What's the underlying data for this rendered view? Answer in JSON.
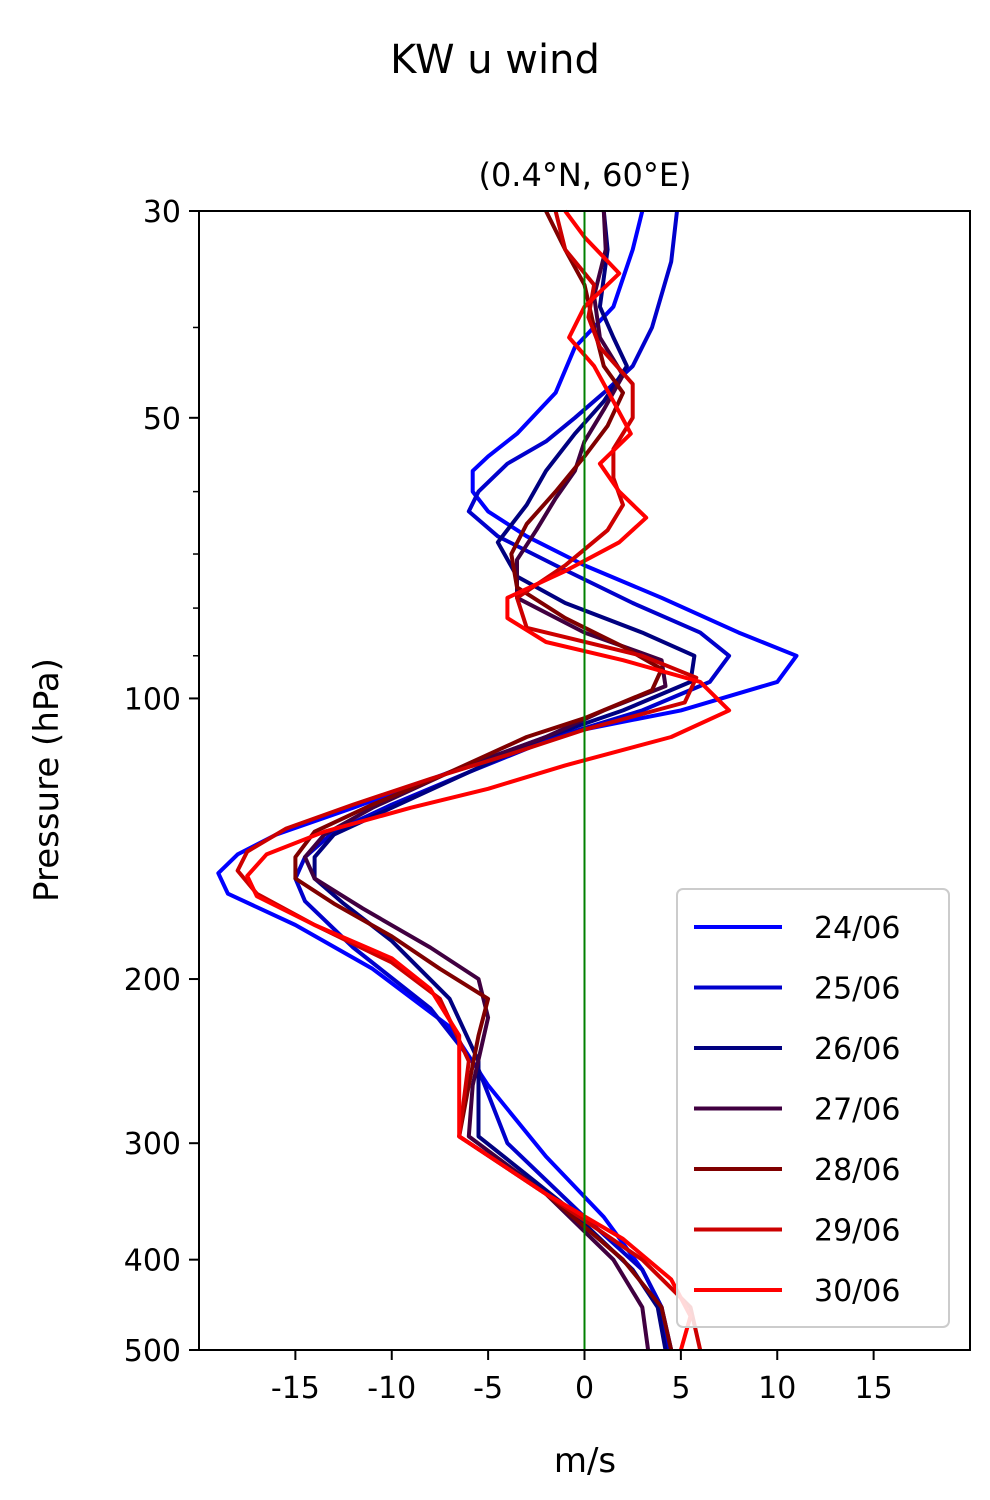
{
  "figure_title": "KW u wind",
  "chart_data": {
    "type": "line",
    "title": "(0.4°N, 60°E)",
    "xlabel": "m/s",
    "ylabel": "Pressure (hPa)",
    "xlim": [
      -20,
      20
    ],
    "ylim": [
      500,
      30
    ],
    "yscale": "log",
    "xticks": [
      -15,
      -10,
      -5,
      0,
      5,
      10,
      15
    ],
    "xtick_labels": [
      "-15",
      "-10",
      "-5",
      "0",
      "5",
      "10",
      "15"
    ],
    "yticks": [
      30,
      50,
      100,
      200,
      300,
      400,
      500
    ],
    "ytick_labels": [
      "30",
      "50",
      "100",
      "200",
      "300",
      "400",
      "500"
    ],
    "yminor_ticks": [
      40,
      60,
      70,
      80,
      90
    ],
    "zero_line": {
      "x": 0,
      "color": "#008000"
    },
    "grid": false,
    "legend_position": "lower right",
    "series": [
      {
        "name": "24/06",
        "color": "#0000ff",
        "points": [
          [
            3.0,
            30
          ],
          [
            2.5,
            33
          ],
          [
            1.5,
            38
          ],
          [
            -0.5,
            42
          ],
          [
            -1.5,
            47
          ],
          [
            -3.5,
            52
          ],
          [
            -5,
            55
          ],
          [
            -5.8,
            57
          ],
          [
            -5.8,
            60
          ],
          [
            -5,
            63
          ],
          [
            -3,
            67
          ],
          [
            0,
            72
          ],
          [
            4,
            78
          ],
          [
            8,
            85
          ],
          [
            11,
            90
          ],
          [
            10,
            96
          ],
          [
            5,
            103
          ],
          [
            -2,
            110
          ],
          [
            -7,
            120
          ],
          [
            -12,
            131
          ],
          [
            -16,
            140
          ],
          [
            -18,
            147
          ],
          [
            -19,
            154
          ],
          [
            -18.5,
            162
          ],
          [
            -15,
            175
          ],
          [
            -11,
            195
          ],
          [
            -7,
            225
          ],
          [
            -5,
            260
          ],
          [
            -2,
            310
          ],
          [
            1,
            360
          ],
          [
            3,
            410
          ],
          [
            4,
            450
          ],
          [
            4.5,
            500
          ]
        ]
      },
      {
        "name": "25/06",
        "color": "#0000cc",
        "points": [
          [
            4.8,
            30
          ],
          [
            4.5,
            34
          ],
          [
            3.5,
            40
          ],
          [
            2.5,
            44
          ],
          [
            1,
            47
          ],
          [
            -0.5,
            50
          ],
          [
            -2,
            53
          ],
          [
            -4,
            56
          ],
          [
            -5.5,
            60
          ],
          [
            -6,
            63
          ],
          [
            -4.5,
            67
          ],
          [
            -1.5,
            72
          ],
          [
            2.5,
            79
          ],
          [
            6,
            85
          ],
          [
            7.5,
            90
          ],
          [
            6.5,
            96
          ],
          [
            3,
            103
          ],
          [
            -1.5,
            110
          ],
          [
            -6,
            120
          ],
          [
            -10,
            130
          ],
          [
            -13,
            139
          ],
          [
            -14.5,
            148
          ],
          [
            -15,
            156
          ],
          [
            -14.5,
            165
          ],
          [
            -12,
            185
          ],
          [
            -8,
            215
          ],
          [
            -5.5,
            250
          ],
          [
            -4,
            300
          ],
          [
            0,
            360
          ],
          [
            3,
            410
          ],
          [
            4,
            450
          ],
          [
            4.3,
            500
          ]
        ]
      },
      {
        "name": "26/06",
        "color": "#000080",
        "points": [
          [
            1,
            30
          ],
          [
            1.2,
            33
          ],
          [
            0.8,
            38
          ],
          [
            1.5,
            41
          ],
          [
            2.2,
            44
          ],
          [
            1,
            48
          ],
          [
            -0.5,
            52
          ],
          [
            -2,
            57
          ],
          [
            -3,
            62
          ],
          [
            -4.5,
            68
          ],
          [
            -3.5,
            74
          ],
          [
            -1,
            79
          ],
          [
            3,
            85
          ],
          [
            5.7,
            90
          ],
          [
            5.5,
            96
          ],
          [
            2,
            103
          ],
          [
            -2,
            110
          ],
          [
            -6,
            120
          ],
          [
            -10,
            131
          ],
          [
            -13,
            140
          ],
          [
            -14,
            148
          ],
          [
            -14,
            156
          ],
          [
            -12.5,
            166
          ],
          [
            -10,
            182
          ],
          [
            -7,
            210
          ],
          [
            -5.5,
            245
          ],
          [
            -5.5,
            295
          ],
          [
            -1,
            350
          ],
          [
            2.5,
            410
          ],
          [
            3.8,
            450
          ],
          [
            4.2,
            500
          ]
        ]
      },
      {
        "name": "27/06",
        "color": "#400040",
        "points": [
          [
            1,
            30
          ],
          [
            1.1,
            33
          ],
          [
            0.5,
            37
          ],
          [
            0.8,
            41
          ],
          [
            2,
            45
          ],
          [
            1,
            49
          ],
          [
            0,
            53
          ],
          [
            -0.5,
            57
          ],
          [
            -1.5,
            61
          ],
          [
            -2.5,
            66
          ],
          [
            -3.5,
            71
          ],
          [
            -3.5,
            78
          ],
          [
            0,
            85
          ],
          [
            4,
            91
          ],
          [
            4.2,
            97
          ],
          [
            1,
            103
          ],
          [
            -2,
            110
          ],
          [
            -7,
            120
          ],
          [
            -11,
            131
          ],
          [
            -13.5,
            140
          ],
          [
            -14.5,
            148
          ],
          [
            -14,
            156
          ],
          [
            -11.5,
            168
          ],
          [
            -8,
            185
          ],
          [
            -5.5,
            200
          ],
          [
            -5,
            220
          ],
          [
            -5.8,
            260
          ],
          [
            -6,
            295
          ],
          [
            -2,
            340
          ],
          [
            1.5,
            400
          ],
          [
            3,
            450
          ],
          [
            3.3,
            500
          ]
        ]
      },
      {
        "name": "28/06",
        "color": "#800000",
        "points": [
          [
            -2,
            30
          ],
          [
            -1,
            33
          ],
          [
            0,
            36
          ],
          [
            0.5,
            40
          ],
          [
            1,
            44
          ],
          [
            2,
            47
          ],
          [
            1.2,
            51
          ],
          [
            0,
            55
          ],
          [
            -1.5,
            60
          ],
          [
            -3,
            65
          ],
          [
            -3.8,
            70
          ],
          [
            -3.5,
            76
          ],
          [
            -1,
            82
          ],
          [
            2,
            88
          ],
          [
            4,
            93
          ],
          [
            3.5,
            98
          ],
          [
            0,
            105
          ],
          [
            -3,
            110
          ],
          [
            -7,
            120
          ],
          [
            -11,
            130
          ],
          [
            -14,
            139
          ],
          [
            -15,
            148
          ],
          [
            -15,
            156
          ],
          [
            -13,
            166
          ],
          [
            -10,
            180
          ],
          [
            -7.5,
            195
          ],
          [
            -5,
            210
          ],
          [
            -5.5,
            230
          ],
          [
            -6,
            260
          ],
          [
            -6.5,
            295
          ],
          [
            -2,
            340
          ],
          [
            2,
            400
          ],
          [
            4,
            450
          ],
          [
            4.5,
            500
          ]
        ]
      },
      {
        "name": "29/06",
        "color": "#cc0000",
        "points": [
          [
            -1.5,
            30
          ],
          [
            -1,
            33
          ],
          [
            0.5,
            36
          ],
          [
            0.2,
            39
          ],
          [
            0.8,
            42
          ],
          [
            2.5,
            46
          ],
          [
            2.5,
            50
          ],
          [
            1.5,
            54
          ],
          [
            1.5,
            58
          ],
          [
            2,
            62
          ],
          [
            1.2,
            66
          ],
          [
            -1,
            72
          ],
          [
            -3.5,
            78
          ],
          [
            -3,
            84
          ],
          [
            3,
            90
          ],
          [
            5.8,
            95
          ],
          [
            5.2,
            101
          ],
          [
            0,
            108
          ],
          [
            -4,
            115
          ],
          [
            -8,
            122
          ],
          [
            -12,
            130
          ],
          [
            -15.5,
            138
          ],
          [
            -17.5,
            146
          ],
          [
            -18,
            153
          ],
          [
            -17,
            162
          ],
          [
            -14,
            175
          ],
          [
            -10,
            192
          ],
          [
            -7.5,
            210
          ],
          [
            -6,
            245
          ],
          [
            -6.5,
            295
          ],
          [
            -2,
            340
          ],
          [
            3,
            400
          ],
          [
            5.5,
            450
          ],
          [
            6,
            500
          ]
        ]
      },
      {
        "name": "30/06",
        "color": "#ff0000",
        "points": [
          [
            -1,
            30
          ],
          [
            0,
            32
          ],
          [
            1.8,
            35
          ],
          [
            0,
            38
          ],
          [
            -0.8,
            41
          ],
          [
            0.5,
            44
          ],
          [
            1.5,
            48
          ],
          [
            2.4,
            52
          ],
          [
            0.8,
            56
          ],
          [
            1.8,
            60
          ],
          [
            3.2,
            64
          ],
          [
            1.8,
            68
          ],
          [
            -1,
            73
          ],
          [
            -4,
            78
          ],
          [
            -4,
            82
          ],
          [
            -2,
            87
          ],
          [
            2,
            91
          ],
          [
            6,
            96
          ],
          [
            7.5,
            103
          ],
          [
            4.5,
            110
          ],
          [
            -1,
            118
          ],
          [
            -5,
            125
          ],
          [
            -9,
            131
          ],
          [
            -13.5,
            139
          ],
          [
            -16.5,
            147
          ],
          [
            -17.5,
            155
          ],
          [
            -17,
            163
          ],
          [
            -14,
            175
          ],
          [
            -10,
            190
          ],
          [
            -8,
            205
          ],
          [
            -6.5,
            230
          ],
          [
            -6.5,
            265
          ],
          [
            -6.5,
            295
          ],
          [
            -2,
            340
          ],
          [
            2,
            380
          ],
          [
            4.5,
            420
          ],
          [
            5.5,
            460
          ],
          [
            5,
            500
          ]
        ]
      }
    ]
  }
}
